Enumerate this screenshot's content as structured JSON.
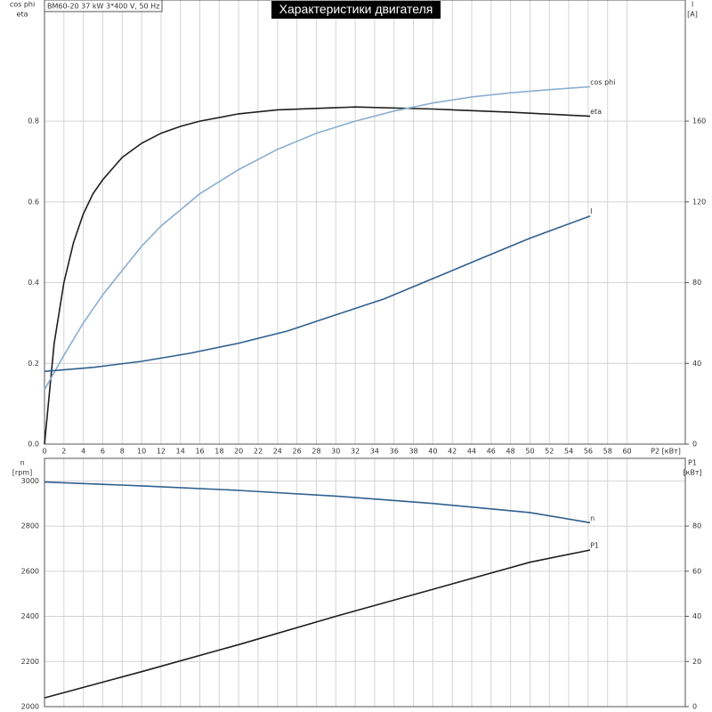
{
  "chart_data": [
    {
      "type": "line",
      "title": "Характеристики двигателя",
      "subtitle": "BM60-20   37 kW   3*400 V, 50 Hz",
      "xlabel": "P2 [кВт]",
      "ylabel": [
        "cos phi",
        "eta"
      ],
      "y2label": [
        "I",
        "[A]"
      ],
      "xlim": [
        0,
        66
      ],
      "xticks": [
        0,
        2,
        4,
        6,
        8,
        10,
        12,
        14,
        16,
        18,
        20,
        22,
        24,
        26,
        28,
        30,
        32,
        34,
        36,
        38,
        40,
        42,
        44,
        46,
        48,
        50,
        52,
        54,
        56,
        58,
        60
      ],
      "ylim": [
        0,
        1.1
      ],
      "yticks": [
        {
          "value": 0,
          "label": "0.0"
        },
        0.2,
        0.4,
        0.6,
        0.8
      ],
      "y2lim": [
        0,
        220
      ],
      "y2ticks": [
        0,
        40,
        80,
        120,
        160
      ],
      "grid": true,
      "series": [
        {
          "name": "eta",
          "color": "#1e1e1e",
          "x": [
            0,
            1,
            2,
            3,
            4,
            5,
            6,
            8,
            10,
            12,
            14,
            16,
            20,
            24,
            32,
            40,
            48,
            56.2
          ],
          "values": [
            0,
            0.25,
            0.4,
            0.5,
            0.57,
            0.62,
            0.655,
            0.71,
            0.745,
            0.77,
            0.787,
            0.8,
            0.818,
            0.828,
            0.835,
            0.83,
            0.822,
            0.812
          ]
        },
        {
          "name": "cos phi",
          "color": "#8aaed0",
          "x": [
            0,
            2,
            4,
            6,
            8,
            10,
            12,
            14,
            16,
            20,
            24,
            28,
            32,
            36,
            40,
            44,
            48,
            52,
            56.2
          ],
          "values": [
            0.135,
            0.22,
            0.3,
            0.37,
            0.43,
            0.49,
            0.54,
            0.58,
            0.62,
            0.68,
            0.73,
            0.77,
            0.8,
            0.825,
            0.845,
            0.86,
            0.87,
            0.878,
            0.885
          ]
        },
        {
          "name": "I",
          "color": "#2f5f8f",
          "axis": "y2",
          "x": [
            0,
            5,
            10,
            15,
            20,
            25,
            30,
            35,
            40,
            45,
            50,
            56.2
          ],
          "values": [
            36,
            38,
            41,
            45,
            50,
            56,
            64,
            72,
            82,
            92,
            102,
            113
          ]
        }
      ]
    },
    {
      "type": "line",
      "ylabel": [
        "n",
        "[rpm]"
      ],
      "y2label": [
        "P1",
        "[кВт]"
      ],
      "xlim": [
        0,
        66
      ],
      "xticks": [
        0,
        2,
        4,
        6,
        8,
        10,
        12,
        14,
        16,
        18,
        20,
        22,
        24,
        26,
        28,
        30,
        32,
        34,
        36,
        38,
        40,
        42,
        44,
        46,
        48,
        50,
        52,
        54,
        56,
        58,
        60
      ],
      "ylim": [
        2000,
        3100
      ],
      "yticks": [
        2000,
        2200,
        2400,
        2600,
        2800,
        3000
      ],
      "y2lim": [
        0,
        110
      ],
      "y2ticks": [
        0,
        20,
        40,
        60,
        80
      ],
      "grid": true,
      "series": [
        {
          "name": "n",
          "color": "#2f5f8f",
          "x": [
            0,
            10,
            20,
            30,
            40,
            50,
            56.2
          ],
          "values": [
            2995,
            2978,
            2958,
            2933,
            2900,
            2860,
            2815
          ]
        },
        {
          "name": "P1",
          "color": "#1e1e1e",
          "axis": "y2",
          "x": [
            0,
            10,
            20,
            30,
            40,
            50,
            56.2
          ],
          "values": [
            3.9,
            15.5,
            27.5,
            40,
            52,
            64,
            69.4
          ]
        }
      ]
    }
  ]
}
